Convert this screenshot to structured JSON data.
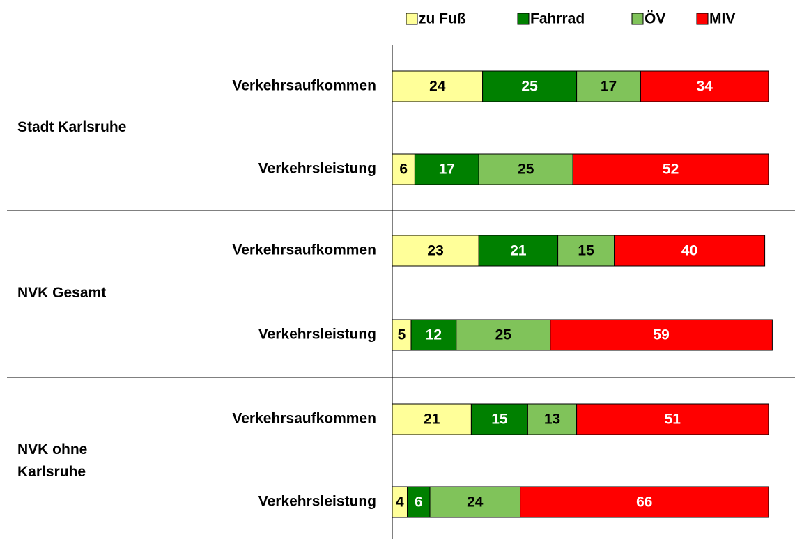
{
  "chart_data": {
    "type": "stacked-barh",
    "categories": [
      "Verkehrsaufkommen",
      "Verkehrsleistung",
      "Verkehrsaufkommen",
      "Verkehrsleistung",
      "Verkehrsaufkommen",
      "Verkehrsleistung"
    ],
    "groups": [
      "Stadt Karlsruhe",
      "NVK Gesamt",
      "NVK ohne\nKarlsruhe"
    ],
    "series": [
      {
        "name": "zu Fuß",
        "color": "#ffff99",
        "label_color": "#000000",
        "values": [
          24,
          6,
          23,
          5,
          21,
          4
        ]
      },
      {
        "name": "Fahrrad",
        "color": "#008000",
        "label_color": "#ffffff",
        "values": [
          25,
          17,
          21,
          12,
          15,
          6
        ]
      },
      {
        "name": "ÖV",
        "color": "#80c35a",
        "label_color": "#000000",
        "values": [
          17,
          25,
          15,
          25,
          13,
          24
        ]
      },
      {
        "name": "MIV",
        "color": "#ff0000",
        "label_color": "#ffffff",
        "values": [
          34,
          52,
          40,
          59,
          51,
          66
        ]
      }
    ],
    "xlim": [
      0,
      100
    ],
    "legend": "top"
  }
}
